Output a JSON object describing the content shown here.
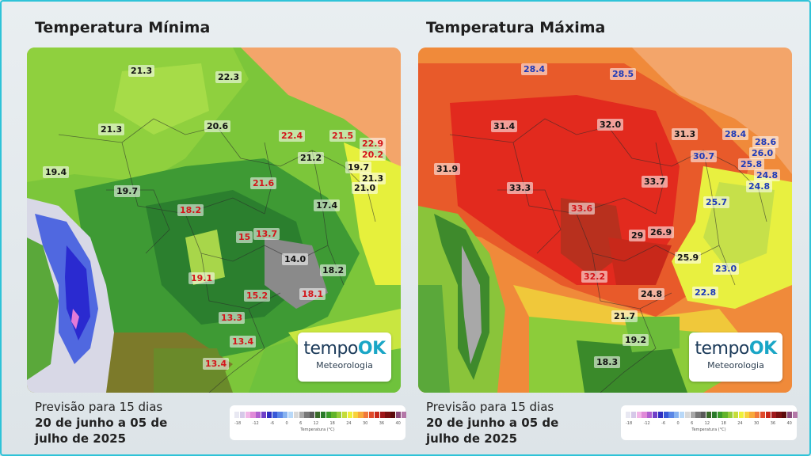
{
  "left_panel": {
    "title": "Temperatura Mínima",
    "labels": [
      {
        "text": "21.3",
        "color": "black"
      },
      {
        "text": "22.3",
        "color": "black"
      },
      {
        "text": "21.3",
        "color": "black"
      },
      {
        "text": "20.6",
        "color": "black"
      },
      {
        "text": "22.4",
        "color": "red"
      },
      {
        "text": "21.5",
        "color": "red"
      },
      {
        "text": "22.9",
        "color": "red"
      },
      {
        "text": "20.2",
        "color": "red"
      },
      {
        "text": "21.2",
        "color": "black"
      },
      {
        "text": "19.7",
        "color": "black"
      },
      {
        "text": "21.3",
        "color": "black"
      },
      {
        "text": "21.0",
        "color": "black"
      },
      {
        "text": "19.4",
        "color": "black"
      },
      {
        "text": "19.7",
        "color": "black"
      },
      {
        "text": "21.6",
        "color": "red"
      },
      {
        "text": "17.4",
        "color": "black"
      },
      {
        "text": "18.2",
        "color": "red"
      },
      {
        "text": "15",
        "color": "red"
      },
      {
        "text": "13.7",
        "color": "red"
      },
      {
        "text": "14.0",
        "color": "black"
      },
      {
        "text": "18.2",
        "color": "black"
      },
      {
        "text": "19.1",
        "color": "red"
      },
      {
        "text": "15.2",
        "color": "red"
      },
      {
        "text": "18.1",
        "color": "red"
      },
      {
        "text": "13.3",
        "color": "red"
      },
      {
        "text": "13.4",
        "color": "red"
      },
      {
        "text": "13.4",
        "color": "red"
      }
    ],
    "logo": {
      "brand_a": "tempo",
      "brand_b": "OK",
      "sub": "Meteorologia"
    },
    "caption": {
      "line1": "Previsão para 15 dias",
      "line2": "20 de junho a 05 de",
      "line3": "julho de 2025"
    }
  },
  "right_panel": {
    "title": "Temperatura Máxima",
    "labels": [
      {
        "text": "28.4",
        "color": "blue"
      },
      {
        "text": "28.5",
        "color": "blue"
      },
      {
        "text": "31.4",
        "color": "black"
      },
      {
        "text": "32.0",
        "color": "black"
      },
      {
        "text": "31.3",
        "color": "black"
      },
      {
        "text": "28.4",
        "color": "blue"
      },
      {
        "text": "28.6",
        "color": "blue"
      },
      {
        "text": "26.0",
        "color": "blue"
      },
      {
        "text": "30.7",
        "color": "blue"
      },
      {
        "text": "25.8",
        "color": "blue"
      },
      {
        "text": "24.8",
        "color": "blue"
      },
      {
        "text": "24.8",
        "color": "blue"
      },
      {
        "text": "31.9",
        "color": "black"
      },
      {
        "text": "33.3",
        "color": "black"
      },
      {
        "text": "33.7",
        "color": "black"
      },
      {
        "text": "25.7",
        "color": "blue"
      },
      {
        "text": "33.6",
        "color": "red"
      },
      {
        "text": "29",
        "color": "black"
      },
      {
        "text": "26.9",
        "color": "black"
      },
      {
        "text": "25.9",
        "color": "black"
      },
      {
        "text": "23.0",
        "color": "blue"
      },
      {
        "text": "32.2",
        "color": "red"
      },
      {
        "text": "24.8",
        "color": "black"
      },
      {
        "text": "22.8",
        "color": "blue"
      },
      {
        "text": "21.7",
        "color": "black"
      },
      {
        "text": "19.2",
        "color": "black"
      },
      {
        "text": "18.3",
        "color": "black"
      }
    ],
    "logo": {
      "brand_a": "tempo",
      "brand_b": "OK",
      "sub": "Meteorologia"
    },
    "caption": {
      "line1": "Previsão para 15 dias",
      "line2": "20 de junho a 05 de",
      "line3": "julho de 2025"
    }
  },
  "scale": {
    "ticks": [
      "-18",
      "-12",
      "-6",
      "0",
      "6",
      "12",
      "18",
      "24",
      "30",
      "36",
      "40"
    ],
    "unit": "Temperatura (°C)",
    "colors": [
      "#e8e8f2",
      "#d6c8e8",
      "#f2b6e8",
      "#e08ad8",
      "#b060d0",
      "#7040c8",
      "#3030c0",
      "#3858d8",
      "#5a86e6",
      "#86b2f0",
      "#b8d8f8",
      "#d8d8d8",
      "#a8a8a8",
      "#787878",
      "#5a5a5a",
      "#3a6a2a",
      "#2a7a2a",
      "#3a9a2a",
      "#62b42a",
      "#96cc3a",
      "#c4dc3a",
      "#eef03a",
      "#f8d23a",
      "#f8a83a",
      "#f0783a",
      "#e04a2a",
      "#c8281a",
      "#a0181a",
      "#7a1010",
      "#5a0a0a",
      "#8a4a7a",
      "#b478a8"
    ]
  }
}
